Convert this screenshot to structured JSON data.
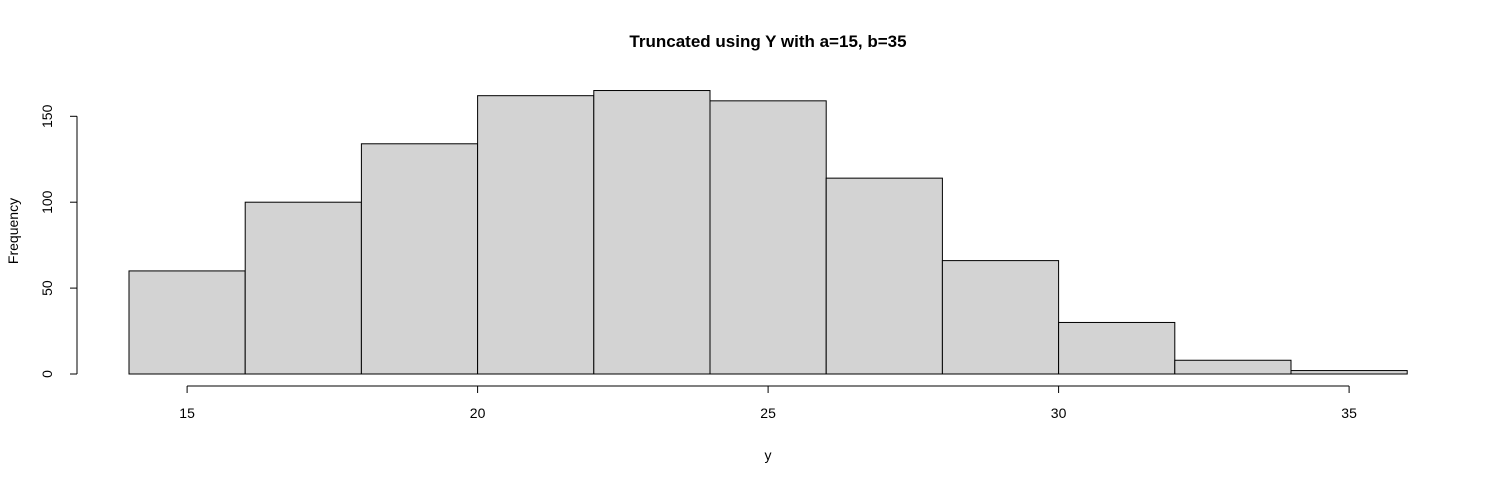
{
  "chart_data": {
    "type": "bar",
    "title": "Truncated using Y with a=15, b=35",
    "xlabel": "y",
    "ylabel": "Frequency",
    "bins": [
      {
        "x0": 14,
        "x1": 16,
        "count": 60
      },
      {
        "x0": 16,
        "x1": 18,
        "count": 100
      },
      {
        "x0": 18,
        "x1": 20,
        "count": 134
      },
      {
        "x0": 20,
        "x1": 22,
        "count": 162
      },
      {
        "x0": 22,
        "x1": 24,
        "count": 165
      },
      {
        "x0": 24,
        "x1": 26,
        "count": 159
      },
      {
        "x0": 26,
        "x1": 28,
        "count": 114
      },
      {
        "x0": 28,
        "x1": 30,
        "count": 66
      },
      {
        "x0": 30,
        "x1": 32,
        "count": 30
      },
      {
        "x0": 32,
        "x1": 34,
        "count": 8
      },
      {
        "x0": 34,
        "x1": 36,
        "count": 2
      }
    ],
    "xlim": [
      14,
      36
    ],
    "ylim": [
      0,
      165
    ],
    "x_ticks": [
      15,
      20,
      25,
      30,
      35
    ],
    "y_ticks": [
      0,
      50,
      100,
      150
    ],
    "grid": false,
    "colors": {
      "bar_fill": "#d3d3d3",
      "bar_stroke": "#000000"
    }
  }
}
